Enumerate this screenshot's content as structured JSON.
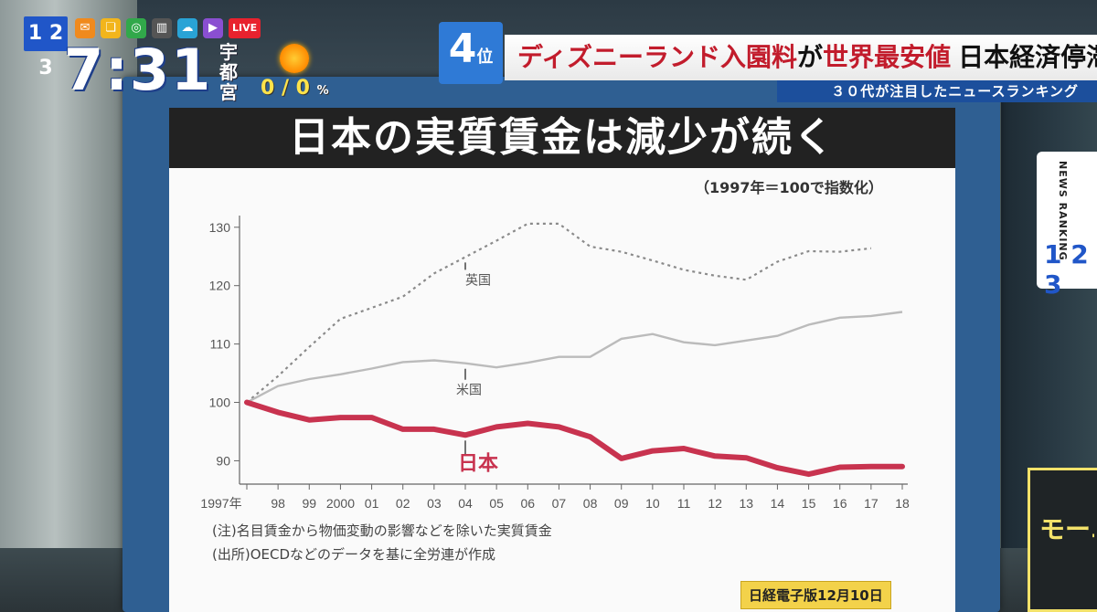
{
  "overlay": {
    "logo": "1 2 3",
    "live": "LIVE",
    "time": "7:31",
    "city": "宇都宮",
    "precip": "0 / 0",
    "precip_unit": "%"
  },
  "ranking": {
    "rank": "4",
    "rank_suffix": "位",
    "headline_part1": "ディズニーランド入園料",
    "headline_part2": "が",
    "headline_part3": "世界最安値",
    "headline_part4": "日本経済停滞か",
    "subbar": "３０代が注目したニュースランキング"
  },
  "side_tag": {
    "text": "NEWS RANKING",
    "logo": "1 2 3"
  },
  "board": {
    "title": "日本の実質賃金は減少が続く",
    "index_note": "（1997年＝100で指数化）",
    "note1": "(注)名目賃金から物価変動の影響などを除いた実質賃金",
    "note2": "(出所)OECDなどのデータを基に全労連が作成",
    "source": "日経電子版12月10日"
  },
  "mug": {
    "text": "モーニ CRO"
  },
  "colors": {
    "japan": "#c8334f",
    "uk": "#8a8a8a",
    "us": "#bbbbbb",
    "board": "#2f5f92",
    "headline_red": "#c21c2c",
    "rank_blue": "#2f7ad6"
  },
  "chart_data": {
    "type": "line",
    "title": "日本の実質賃金は減少が続く",
    "subtitle": "（1997年＝100で指数化）",
    "xlabel": "",
    "ylabel": "",
    "x_tick_labels": [
      "1997年",
      "98",
      "99",
      "2000",
      "01",
      "02",
      "03",
      "04",
      "05",
      "06",
      "07",
      "08",
      "09",
      "10",
      "11",
      "12",
      "13",
      "14",
      "15",
      "16",
      "17",
      "18"
    ],
    "x": [
      1997,
      1998,
      1999,
      2000,
      2001,
      2002,
      2003,
      2004,
      2005,
      2006,
      2007,
      2008,
      2009,
      2010,
      2011,
      2012,
      2013,
      2014,
      2015,
      2016,
      2017,
      2018
    ],
    "y_ticks": [
      90,
      100,
      110,
      120,
      130
    ],
    "ylim": [
      86,
      132
    ],
    "grid": false,
    "series": [
      {
        "name": "英国",
        "style": "dotted",
        "color": "#8a8a8a",
        "values": [
          100,
          104.5,
          109.5,
          114.3,
          116.2,
          118.1,
          122.1,
          124.9,
          127.7,
          130.6,
          130.6,
          126.7,
          125.8,
          124.3,
          122.7,
          121.7,
          121.0,
          124.1,
          125.9,
          125.8,
          126.4,
          null
        ]
      },
      {
        "name": "米国",
        "style": "solid-thin",
        "color": "#bbbbbb",
        "values": [
          100,
          102.8,
          104.0,
          104.8,
          105.8,
          106.9,
          107.2,
          106.7,
          106.0,
          106.8,
          107.8,
          107.8,
          110.9,
          111.7,
          110.3,
          109.8,
          110.6,
          111.4,
          113.3,
          114.5,
          114.8,
          115.5
        ]
      },
      {
        "name": "日本",
        "style": "solid-thick",
        "color": "#c8334f",
        "values": [
          100,
          98.3,
          97.0,
          97.4,
          97.4,
          95.4,
          95.4,
          94.4,
          95.8,
          96.4,
          95.8,
          94.1,
          90.4,
          91.7,
          92.1,
          90.8,
          90.5,
          88.8,
          87.7,
          88.9,
          89.0,
          89.0
        ]
      }
    ]
  }
}
